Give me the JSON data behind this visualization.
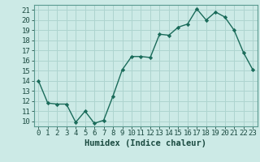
{
  "x": [
    0,
    1,
    2,
    3,
    4,
    5,
    6,
    7,
    8,
    9,
    10,
    11,
    12,
    13,
    14,
    15,
    16,
    17,
    18,
    19,
    20,
    21,
    22,
    23
  ],
  "y": [
    14.0,
    11.8,
    11.7,
    11.7,
    9.9,
    11.0,
    9.8,
    10.1,
    12.5,
    15.1,
    16.4,
    16.4,
    16.3,
    18.6,
    18.5,
    19.3,
    19.6,
    21.1,
    20.0,
    20.8,
    20.3,
    19.0,
    16.8,
    15.1
  ],
  "xlim": [
    -0.5,
    23.5
  ],
  "ylim": [
    9.5,
    21.5
  ],
  "yticks": [
    10,
    11,
    12,
    13,
    14,
    15,
    16,
    17,
    18,
    19,
    20,
    21
  ],
  "xtick_labels": [
    "0",
    "1",
    "2",
    "3",
    "4",
    "5",
    "6",
    "7",
    "8",
    "9",
    "10",
    "11",
    "12",
    "13",
    "14",
    "15",
    "16",
    "17",
    "18",
    "19",
    "20",
    "21",
    "22",
    "23"
  ],
  "xlabel": "Humidex (Indice chaleur)",
  "line_color": "#1a6b5a",
  "marker": "D",
  "marker_size": 2.2,
  "bg_color": "#cceae6",
  "grid_color": "#aed4cf",
  "tick_fontsize": 6.5,
  "label_fontsize": 7.5
}
